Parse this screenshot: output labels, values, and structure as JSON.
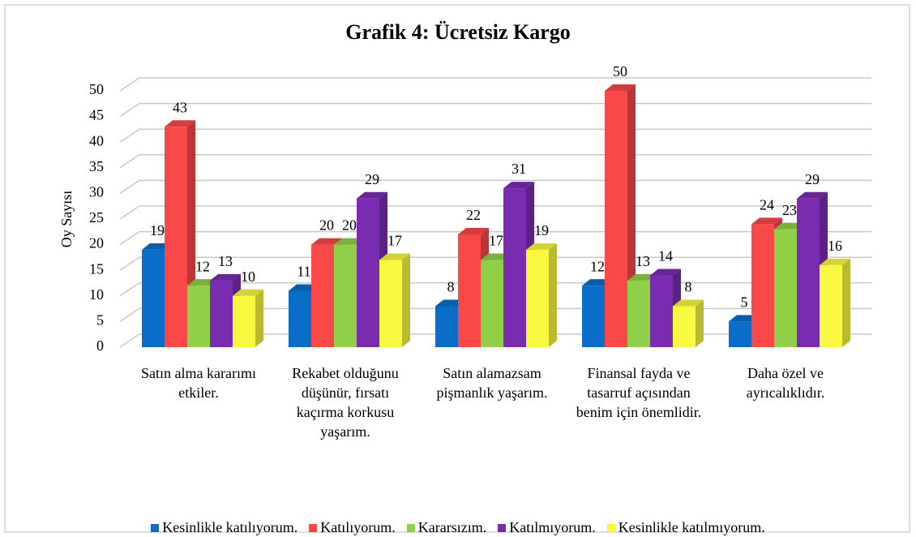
{
  "chart_data": {
    "type": "bar3d",
    "title": "Grafik 4: Ücretsiz Kargo",
    "y_label": "Oy Sayısı",
    "categories": [
      "Satın alma kararımı etkiler.",
      "Rekabet olduğunu düşünür, fırsatı kaçırma korkusu yaşarım.",
      "Satın alamazsam pişmanlık yaşarım.",
      "Finansal fayda ve tasarruf açısından benim için önemlidir.",
      "Daha özel ve ayrıcalıklıdır."
    ],
    "series": [
      {
        "name": "Kesinlikle katılıyorum.",
        "color": "#0a6ec8",
        "values": [
          19,
          11,
          8,
          12,
          5
        ]
      },
      {
        "name": "Katılıyorum.",
        "color": "#f84848",
        "values": [
          43,
          20,
          22,
          50,
          24
        ]
      },
      {
        "name": "Kararsızım.",
        "color": "#8fd048",
        "values": [
          12,
          20,
          17,
          13,
          23
        ]
      },
      {
        "name": "Katılmıyorum.",
        "color": "#7a2cb0",
        "values": [
          13,
          29,
          31,
          14,
          29
        ]
      },
      {
        "name": "Kesinlikle katılmıyorum.",
        "color": "#f8f840",
        "values": [
          10,
          17,
          19,
          8,
          16
        ]
      }
    ],
    "ylim": [
      0,
      50
    ],
    "yticks": [
      0,
      5,
      10,
      15,
      20,
      25,
      30,
      35,
      40,
      45,
      50
    ],
    "grid": true,
    "legend": "bottom"
  }
}
